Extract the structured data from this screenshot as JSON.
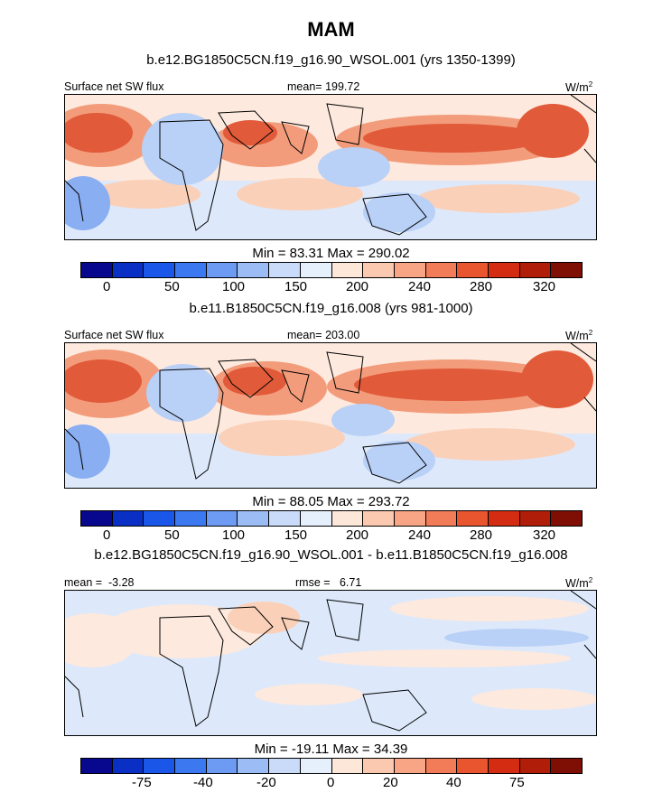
{
  "title": "MAM",
  "colors": [
    "#08088f",
    "#0a2fc4",
    "#1a56e8",
    "#3c78f0",
    "#6d9af3",
    "#9cbcf5",
    "#c9dbf8",
    "#e6f0fc",
    "#fde7d9",
    "#fbc9b0",
    "#f7a585",
    "#f17c57",
    "#e8552f",
    "#d42c12",
    "#b01d08",
    "#7f0f04"
  ],
  "map_colors": {
    "deep_red": "#e15a39",
    "mid_red": "#f29c7b",
    "light_red": "#fbd0b8",
    "pale": "#fde9dd",
    "pale_blue": "#dde9fb",
    "light_blue": "#b9d0f7",
    "mid_blue": "#8aaef2",
    "land_blue": "#a9c5f6"
  },
  "chart_data": [
    {
      "type": "heatmap",
      "subtitle": "b.e12.BG1850C5CN.f19_g16.90_WSOL.001 (yrs 1350-1399)",
      "variable": "Surface net SW flux",
      "stat_label": "mean=",
      "stat_value": "199.72",
      "units_base": "W/m",
      "units_exp": "2",
      "min_max_text": "Min =  83.31 Max = 290.02",
      "colorbar_labels": [
        "0",
        "50",
        "100",
        "150",
        "200",
        "240",
        "280",
        "320"
      ],
      "value_range": [
        83.31,
        290.02
      ]
    },
    {
      "type": "heatmap",
      "subtitle": "b.e11.B1850C5CN.f19_g16.008 (yrs 981-1000)",
      "variable": "Surface net SW flux",
      "stat_label": "mean=",
      "stat_value": "203.00",
      "units_base": "W/m",
      "units_exp": "2",
      "min_max_text": "Min =  88.05 Max = 293.72",
      "colorbar_labels": [
        "0",
        "50",
        "100",
        "150",
        "200",
        "240",
        "280",
        "320"
      ],
      "value_range": [
        88.05,
        293.72
      ]
    },
    {
      "type": "heatmap",
      "subtitle": "b.e12.BG1850C5CN.f19_g16.90_WSOL.001 - b.e11.B1850C5CN.f19_g16.008",
      "stat1_label": "mean =",
      "stat1_value": "-3.28",
      "stat2_label": "rmse =",
      "stat2_value": "6.71",
      "units_base": "W/m",
      "units_exp": "2",
      "min_max_text": "Min = -19.11 Max =  34.39",
      "colorbar_labels": [
        "-75",
        "-40",
        "-20",
        "0",
        "20",
        "40",
        "75"
      ],
      "value_range": [
        -19.11,
        34.39
      ]
    }
  ]
}
